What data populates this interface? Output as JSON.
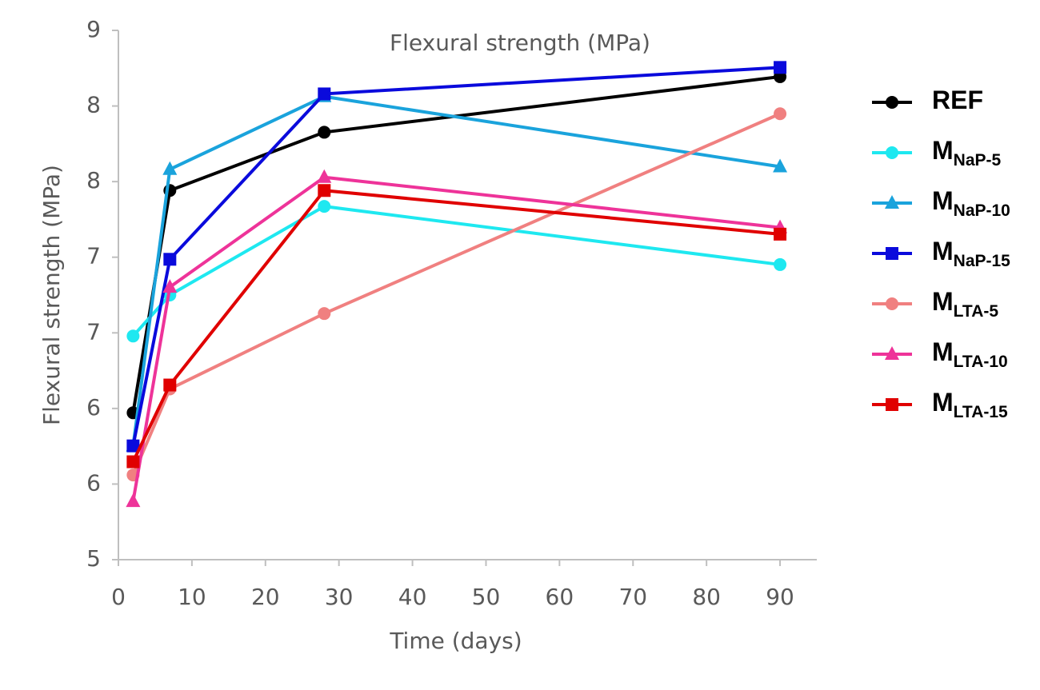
{
  "chart_data": {
    "type": "line",
    "title": "Flexural strength (MPa)",
    "xlabel": "Time (days)",
    "ylabel": "Flexural strength (MPa)",
    "x": [
      2,
      7,
      28,
      90
    ],
    "xlim": [
      0,
      95
    ],
    "xticks": [
      0,
      10,
      20,
      30,
      40,
      50,
      60,
      70,
      80,
      90
    ],
    "ylim": [
      5,
      9
    ],
    "yticks": [
      9,
      {
        "value": 8.428571,
        "label": "8"
      },
      {
        "value": 7.857143,
        "label": "8"
      },
      {
        "value": 7.285714,
        "label": "7"
      },
      {
        "value": 6.714286,
        "label": "7"
      },
      {
        "value": 6.142857,
        "label": "6"
      },
      {
        "value": 5.571429,
        "label": "6"
      },
      5
    ],
    "grid": false,
    "legend": "right",
    "series": [
      {
        "name": "REF",
        "color": "#000000",
        "marker": "circle",
        "values": [
          6.11,
          7.79,
          8.23,
          8.65
        ]
      },
      {
        "name": "M",
        "name_sub": "NaP-5",
        "color": "#1ee8f0",
        "marker": "circle",
        "values": [
          6.69,
          7.0,
          7.67,
          7.23
        ]
      },
      {
        "name": "M",
        "name_sub": "NaP-10",
        "color": "#1aa3dc",
        "marker": "triangle",
        "values": [
          5.86,
          7.95,
          8.5,
          7.97
        ]
      },
      {
        "name": "M",
        "name_sub": "NaP-15",
        "color": "#0a0adc",
        "marker": "square",
        "values": [
          5.86,
          7.27,
          8.52,
          8.72
        ]
      },
      {
        "name": "M",
        "name_sub": "LTA-5",
        "color": "#f08080",
        "marker": "circle",
        "values": [
          5.64,
          6.29,
          6.86,
          8.37
        ]
      },
      {
        "name": "M",
        "name_sub": "LTA-10",
        "color": "#ee3399",
        "marker": "triangle",
        "values": [
          5.44,
          7.06,
          7.89,
          7.51
        ]
      },
      {
        "name": "M",
        "name_sub": "LTA-15",
        "color": "#e00000",
        "marker": "square",
        "values": [
          5.74,
          6.32,
          7.79,
          7.46
        ]
      }
    ]
  }
}
